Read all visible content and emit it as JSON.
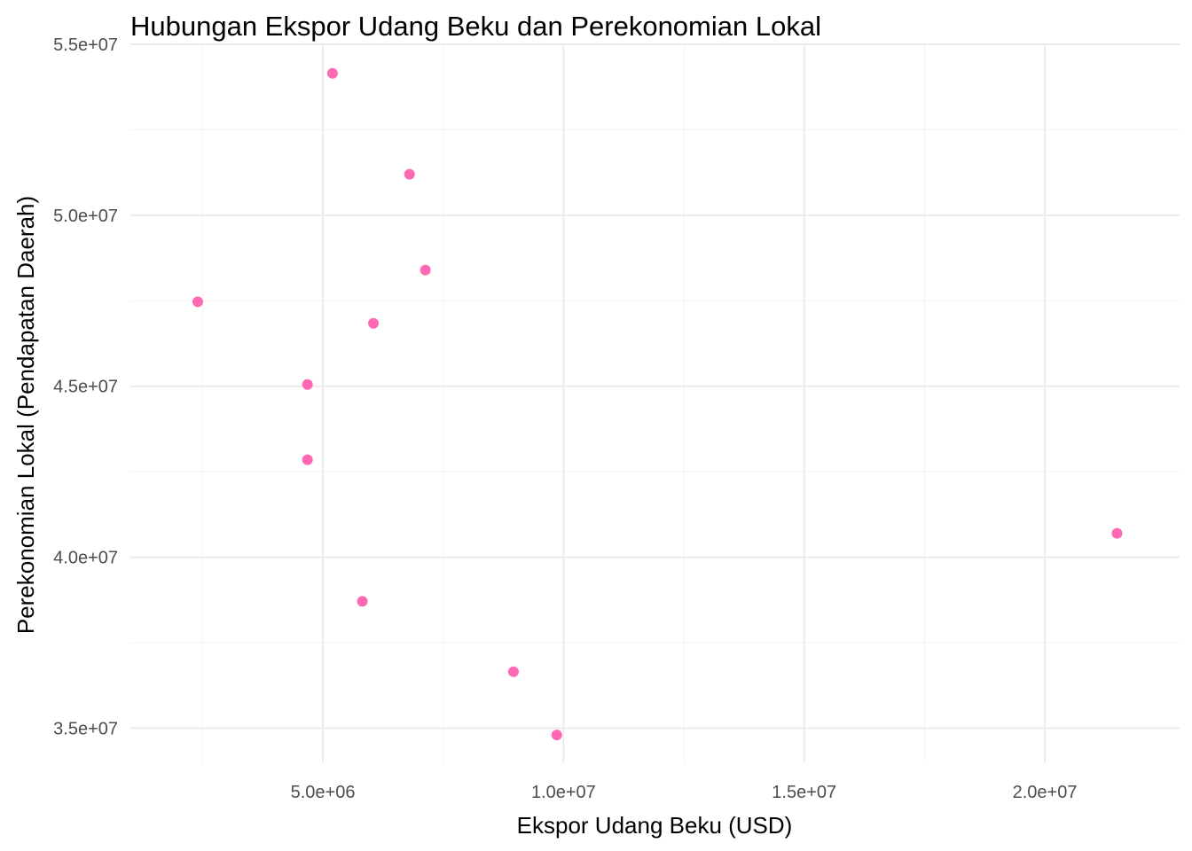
{
  "chart_data": {
    "type": "scatter",
    "title": "Hubungan Ekspor Udang Beku dan Perekonomian Lokal",
    "xlabel": "Ekspor Udang Beku (USD)",
    "ylabel": "Perekonomian Lokal (Pendapatan Daerah)",
    "xlim": [
      1000000,
      22800000
    ],
    "ylim": [
      34000000,
      55000000
    ],
    "x_ticks": [
      {
        "value": 5000000,
        "label": "5.0e+06"
      },
      {
        "value": 10000000,
        "label": "1.0e+07"
      },
      {
        "value": 15000000,
        "label": "1.5e+07"
      },
      {
        "value": 20000000,
        "label": "2.0e+07"
      }
    ],
    "y_ticks": [
      {
        "value": 35000000,
        "label": "3.5e+07"
      },
      {
        "value": 40000000,
        "label": "4.0e+07"
      },
      {
        "value": 45000000,
        "label": "4.5e+07"
      },
      {
        "value": 50000000,
        "label": "5.0e+07"
      },
      {
        "value": 55000000,
        "label": "5.5e+07"
      }
    ],
    "x_minor": [
      2500000,
      7500000,
      12500000,
      17500000
    ],
    "y_minor": [
      37500000,
      42500000,
      47500000,
      52500000
    ],
    "grid": true,
    "point_color": "#ff69b4",
    "points": [
      {
        "x": 5200000,
        "y": 54150000
      },
      {
        "x": 6800000,
        "y": 51200000
      },
      {
        "x": 7130000,
        "y": 48400000
      },
      {
        "x": 2400000,
        "y": 47470000
      },
      {
        "x": 6050000,
        "y": 46840000
      },
      {
        "x": 4680000,
        "y": 45050000
      },
      {
        "x": 4680000,
        "y": 42850000
      },
      {
        "x": 21500000,
        "y": 40700000
      },
      {
        "x": 5820000,
        "y": 38710000
      },
      {
        "x": 8960000,
        "y": 36650000
      },
      {
        "x": 9860000,
        "y": 34800000
      }
    ]
  }
}
